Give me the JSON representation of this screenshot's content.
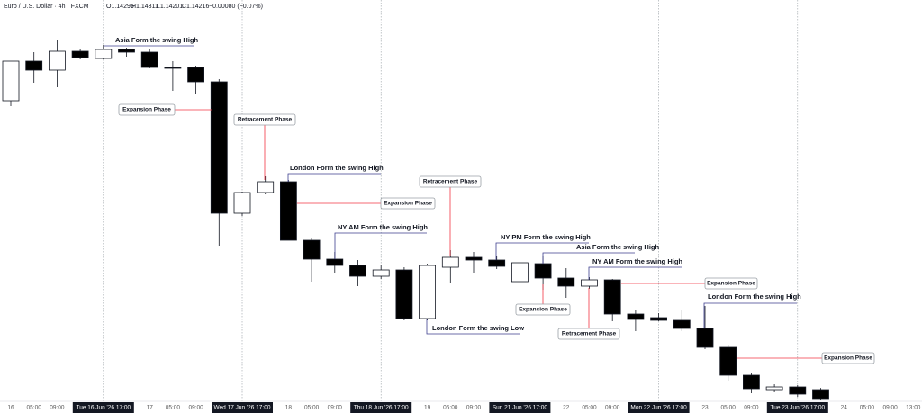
{
  "chart_data": {
    "type": "candlestick",
    "title": "Euro / U.S. Dollar · 4h · FXCM",
    "header_values": [
      "O1.14296",
      "H1.14311",
      "L1.14201",
      "C1.14216",
      "−0.00080 (−0.07%)"
    ],
    "categories": [
      "16",
      "05:00",
      "09:00",
      null,
      "Tue 16 Jun '26  17:00",
      null,
      "17",
      "05:00",
      "09:00",
      null,
      "Wed 17 Jun '26  17:00",
      null,
      "18",
      "05:00",
      "09:00",
      null,
      "Thu 18 Jun '26  17:00",
      null,
      "19",
      "05:00",
      "09:00",
      null,
      "Sun 21 Jun '26  17:00",
      null,
      "22",
      "05:00",
      "09:00",
      null,
      "Mon 22 Jun '26  17:00",
      null,
      "23",
      "05:00",
      "09:00",
      null,
      "Tue 23 Jun '26  17:00",
      null,
      "24",
      "05:00",
      "09:00",
      "13:00"
    ],
    "open": [
      1.16864,
      1.17216,
      1.17136,
      1.17304,
      1.1724,
      1.1732,
      1.17296,
      1.1716,
      1.1716,
      1.17032,
      1.15864,
      1.16048,
      1.16144,
      1.15624,
      1.15456,
      1.154,
      1.15304,
      1.1536,
      1.14928,
      1.15384,
      1.15472,
      1.15448,
      1.15256,
      1.15416,
      1.15288,
      1.15216,
      1.15272,
      1.14968,
      1.14936,
      1.14912,
      1.1484,
      1.14672,
      1.14424,
      1.14296,
      1.1432,
      1.14296,
      null,
      null,
      null,
      null
    ],
    "high": [
      1.17216,
      1.17296,
      1.174,
      1.1732,
      1.1736,
      1.17336,
      1.1732,
      1.17216,
      1.17176,
      1.17056,
      1.16056,
      1.16192,
      1.1616,
      1.1564,
      1.1552,
      1.15448,
      1.154,
      1.15384,
      1.15416,
      1.15536,
      1.1552,
      1.1548,
      1.1544,
      1.15488,
      1.15376,
      1.15296,
      1.1528,
      1.15,
      1.14976,
      1.15,
      1.1504,
      1.14696,
      1.1444,
      1.14344,
      1.14336,
      1.14311,
      null,
      null,
      null,
      null
    ],
    "low": [
      1.16816,
      1.17024,
      1.16984,
      1.17232,
      1.17232,
      1.17256,
      1.17152,
      1.16952,
      1.1692,
      1.15576,
      1.1584,
      1.16032,
      1.15624,
      1.15256,
      1.15336,
      1.15216,
      1.1528,
      1.14912,
      1.14912,
      1.1524,
      1.15336,
      1.15368,
      1.15248,
      1.15184,
      1.15112,
      1.15192,
      1.14904,
      1.14816,
      1.14904,
      1.14816,
      1.14656,
      1.14376,
      1.14264,
      1.14272,
      1.14232,
      1.14201,
      null,
      null,
      null,
      null
    ],
    "close": [
      1.17216,
      1.17136,
      1.17304,
      1.17248,
      1.1732,
      1.17296,
      1.1716,
      1.17152,
      1.17032,
      1.15864,
      1.16048,
      1.16144,
      1.15624,
      1.15456,
      1.154,
      1.15304,
      1.1536,
      1.14928,
      1.154,
      1.15472,
      1.15448,
      1.15392,
      1.15424,
      1.15288,
      1.15216,
      1.15272,
      1.14968,
      1.1492,
      1.14912,
      1.1484,
      1.14672,
      1.14424,
      1.14304,
      1.1432,
      1.14256,
      1.14216,
      null,
      null,
      null,
      null
    ],
    "up_color": "#ffffff",
    "down_color": "#000000",
    "ylim": [
      1.142,
      1.1776
    ],
    "annotations": [
      "Asia Form the swing High",
      "London Form the swing High",
      "NY AM Form the swing High",
      "London Form the swing Low",
      "NY PM Form the swing High",
      "Asia Form the swing High",
      "NY AM Form the swing High",
      "London Form the swing High"
    ],
    "phase_labels": [
      "Expansion Phase",
      "Retracement Phase",
      "Expansion Phase",
      "Retracement Phase",
      "Expansion Phase",
      "Retracement Phase",
      "Expansion Phase",
      "Expansion Phase"
    ]
  }
}
